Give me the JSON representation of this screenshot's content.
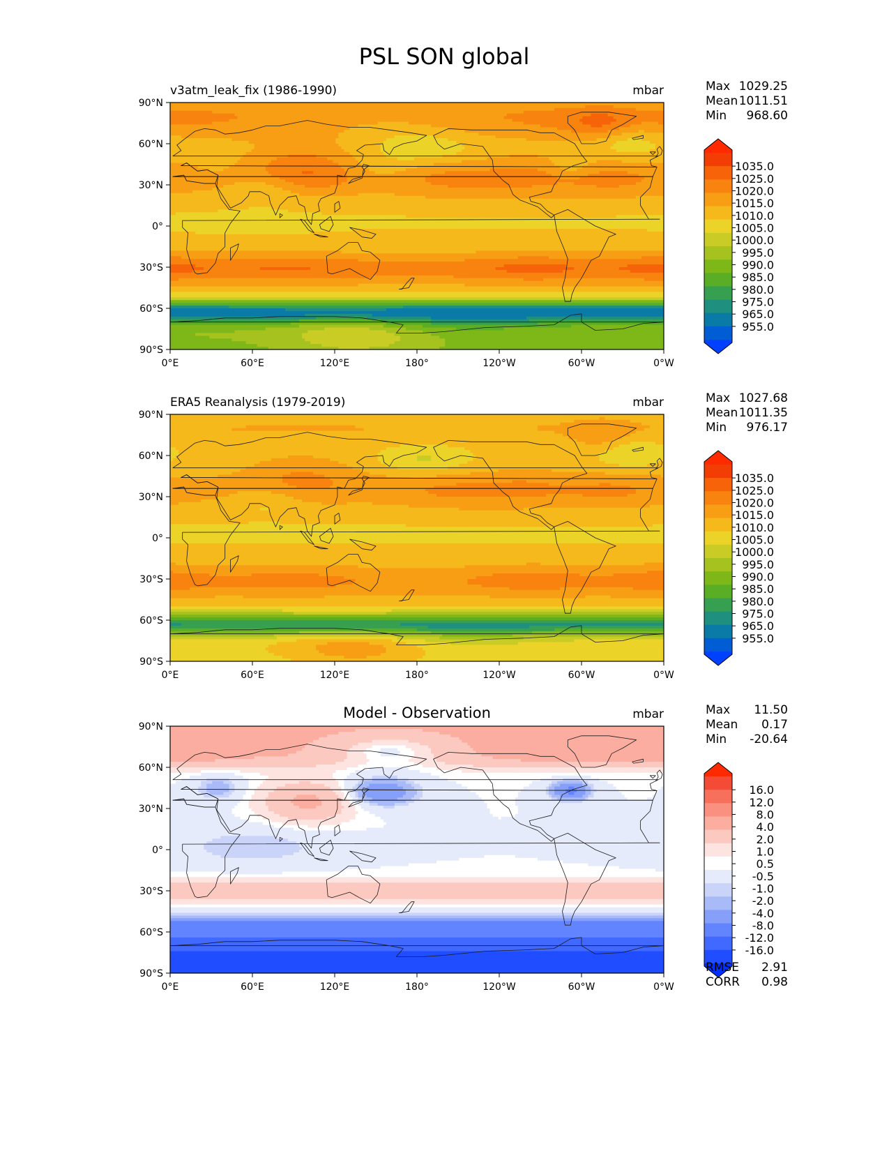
{
  "title": "PSL SON global",
  "colors": {
    "pressure_scale": [
      "#0041ff",
      "#005dd4",
      "#0a7aa6",
      "#1f8f7f",
      "#37a050",
      "#5aae26",
      "#7eb818",
      "#a5c21f",
      "#c8cc25",
      "#ecd328",
      "#f5b91c",
      "#f89e14",
      "#f8830e",
      "#f66308",
      "#f23e05",
      "#ff2a00"
    ],
    "diff_scale": [
      "#0030ff",
      "#1f4dff",
      "#4169ff",
      "#6384ff",
      "#869ff9",
      "#a8baf7",
      "#cad4f8",
      "#e6ebfc",
      "#ffffff",
      "#fde4e0",
      "#fcc9c1",
      "#fbada0",
      "#f99080",
      "#f6705c",
      "#f44b36",
      "#ff2a00"
    ],
    "coastline": "#1a1a1a"
  },
  "chart_data": [
    {
      "type": "heatmap",
      "panel": "top",
      "title": "v3atm_leak_fix (1986-1990)",
      "units": "mbar",
      "stats": {
        "max_label": "Max",
        "max": "1029.25",
        "mean_label": "Mean",
        "mean": "1011.51",
        "min_label": "Min",
        "min": "968.60"
      },
      "x_ticks": [
        "0°E",
        "60°E",
        "120°E",
        "180°",
        "120°W",
        "60°W",
        "0°W"
      ],
      "y_ticks": [
        "90°N",
        "60°N",
        "30°N",
        "0°",
        "30°S",
        "60°S",
        "90°S"
      ],
      "xlim": [
        0,
        360
      ],
      "ylim": [
        -90,
        90
      ],
      "colorbar_levels": [
        "1035.0",
        "1025.0",
        "1020.0",
        "1015.0",
        "1010.0",
        "1005.0",
        "1000.0",
        "995.0",
        "990.0",
        "985.0",
        "980.0",
        "975.0",
        "965.0",
        "955.0"
      ],
      "field": "model"
    },
    {
      "type": "heatmap",
      "panel": "middle",
      "title": "ERA5 Reanalysis (1979-2019)",
      "units": "mbar",
      "stats": {
        "max_label": "Max",
        "max": "1027.68",
        "mean_label": "Mean",
        "mean": "1011.35",
        "min_label": "Min",
        "min": "976.17"
      },
      "x_ticks": [
        "0°E",
        "60°E",
        "120°E",
        "180°",
        "120°W",
        "60°W",
        "0°W"
      ],
      "y_ticks": [
        "90°N",
        "60°N",
        "30°N",
        "0°",
        "30°S",
        "60°S",
        "90°S"
      ],
      "xlim": [
        0,
        360
      ],
      "ylim": [
        -90,
        90
      ],
      "colorbar_levels": [
        "1035.0",
        "1025.0",
        "1020.0",
        "1015.0",
        "1010.0",
        "1005.0",
        "1000.0",
        "995.0",
        "990.0",
        "985.0",
        "980.0",
        "975.0",
        "965.0",
        "955.0"
      ],
      "field": "obs"
    },
    {
      "type": "heatmap",
      "panel": "bottom",
      "title": "Model - Observation",
      "units": "mbar",
      "stats": {
        "max_label": "Max",
        "max": "11.50",
        "mean_label": "Mean",
        "mean": "0.17",
        "min_label": "Min",
        "min": "-20.64"
      },
      "metrics": {
        "rmse_label": "RMSE",
        "rmse": "2.91",
        "corr_label": "CORR",
        "corr": "0.98"
      },
      "x_ticks": [
        "0°E",
        "60°E",
        "120°E",
        "180°",
        "120°W",
        "60°W",
        "0°W"
      ],
      "y_ticks": [
        "90°N",
        "60°N",
        "30°N",
        "0°",
        "30°S",
        "60°S",
        "90°S"
      ],
      "xlim": [
        0,
        360
      ],
      "ylim": [
        -90,
        90
      ],
      "colorbar_levels": [
        "16.0",
        "12.0",
        "8.0",
        "4.0",
        "2.0",
        "1.0",
        "0.5",
        "-0.5",
        "-1.0",
        "-2.0",
        "-4.0",
        "-8.0",
        "-12.0",
        "-16.0"
      ],
      "field": "diff"
    }
  ]
}
